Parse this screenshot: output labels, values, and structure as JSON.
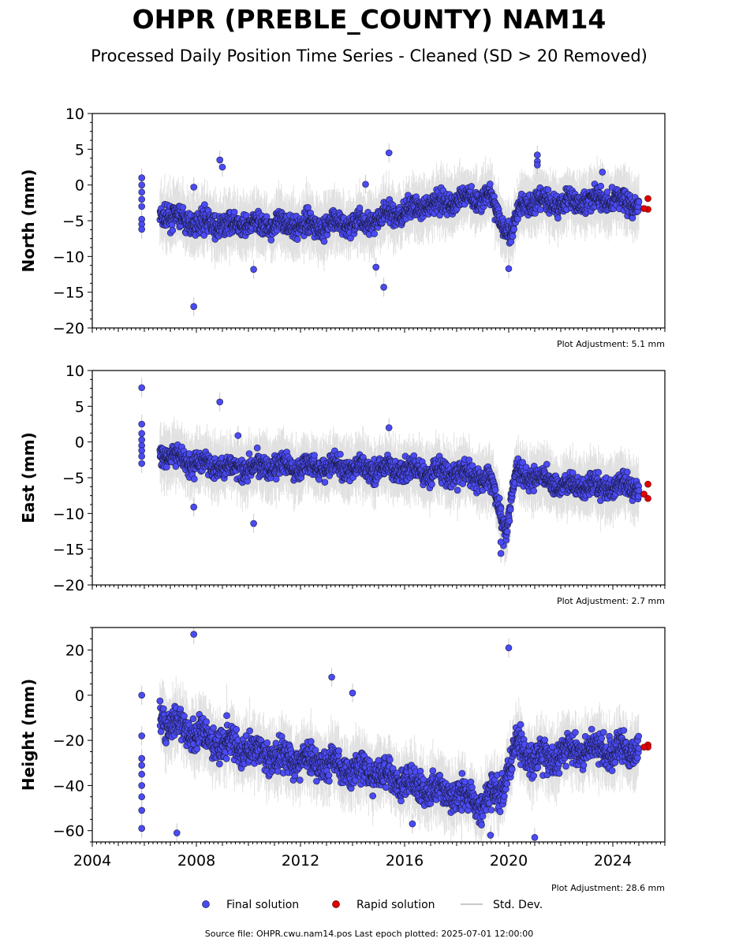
{
  "title": "OHPR (PREBLE_COUNTY) NAM14",
  "subtitle": "Processed Daily Position Time Series - Cleaned (SD > 20 Removed)",
  "footer": "Source file: OHPR.cwu.nam14.pos  Last epoch plotted: 2025-07-01 12:00:00",
  "legend": {
    "final": "Final solution",
    "rapid": "Rapid solution",
    "std": "Std. Dev."
  },
  "colors": {
    "final": "#4b4bf5",
    "rapid": "#e00000",
    "std": "#c8c8c8",
    "point_edge": "#1a1a40"
  },
  "chart_data": [
    {
      "type": "scatter",
      "ylabel": "North (mm)",
      "adjustment": "Plot Adjustment: 5.1 mm",
      "xlim": [
        2004.0,
        2026.0
      ],
      "ylim": [
        -20,
        10
      ],
      "yticks": [
        10,
        5,
        0,
        -5,
        -10,
        -15,
        -20
      ],
      "ytick_labels": [
        "10",
        "5",
        "0",
        "−5",
        "−10",
        "−15",
        "−20"
      ],
      "x_tick_labels_shown": false,
      "series": [
        {
          "name": "Final solution",
          "trend": [
            [
              2006.6,
              -4.0
            ],
            [
              2007.5,
              -5.0
            ],
            [
              2009.0,
              -5.6
            ],
            [
              2011.0,
              -5.5
            ],
            [
              2013.0,
              -5.6
            ],
            [
              2014.5,
              -5.3
            ],
            [
              2015.5,
              -4.2
            ],
            [
              2017.0,
              -2.8
            ],
            [
              2018.5,
              -1.8
            ],
            [
              2019.3,
              -1.8
            ],
            [
              2019.8,
              -5.5
            ],
            [
              2020.1,
              -7.0
            ],
            [
              2020.5,
              -2.5
            ],
            [
              2022.0,
              -2.4
            ],
            [
              2024.0,
              -2.0
            ],
            [
              2025.0,
              -2.7
            ]
          ],
          "spread": 1.5,
          "errbar": 3,
          "outliers": [
            [
              2005.9,
              1.0
            ],
            [
              2005.9,
              0.0
            ],
            [
              2005.9,
              -1.0
            ],
            [
              2005.9,
              -2.0
            ],
            [
              2005.9,
              -3.0
            ],
            [
              2005.9,
              -4.8
            ],
            [
              2005.9,
              -5.5
            ],
            [
              2005.9,
              -6.2
            ],
            [
              2007.9,
              -17.0
            ],
            [
              2007.9,
              -0.3
            ],
            [
              2008.9,
              3.5
            ],
            [
              2009.0,
              2.5
            ],
            [
              2014.5,
              0.1
            ],
            [
              2015.4,
              4.5
            ],
            [
              2014.9,
              -11.5
            ],
            [
              2015.2,
              -14.3
            ],
            [
              2021.1,
              4.2
            ],
            [
              2021.1,
              3.3
            ],
            [
              2021.1,
              2.8
            ],
            [
              2020.0,
              -11.7
            ],
            [
              2010.2,
              -11.8
            ],
            [
              2023.6,
              1.8
            ]
          ]
        },
        {
          "name": "Rapid solution",
          "points": [
            [
              2025.35,
              -1.9
            ],
            [
              2025.35,
              -3.4
            ],
            [
              2025.2,
              -3.3
            ]
          ]
        }
      ]
    },
    {
      "type": "scatter",
      "ylabel": "East (mm)",
      "adjustment": "Plot Adjustment: 2.7 mm",
      "xlim": [
        2004.0,
        2026.0
      ],
      "ylim": [
        -20,
        10
      ],
      "yticks": [
        10,
        5,
        0,
        -5,
        -10,
        -15,
        -20
      ],
      "ytick_labels": [
        "10",
        "5",
        "0",
        "−5",
        "−10",
        "−15",
        "−20"
      ],
      "x_tick_labels_shown": false,
      "series": [
        {
          "name": "Final solution",
          "trend": [
            [
              2006.6,
              -1.5
            ],
            [
              2007.5,
              -2.5
            ],
            [
              2009.0,
              -3.5
            ],
            [
              2011.0,
              -3.4
            ],
            [
              2013.0,
              -3.5
            ],
            [
              2015.0,
              -3.8
            ],
            [
              2017.0,
              -4.2
            ],
            [
              2018.5,
              -4.6
            ],
            [
              2019.3,
              -5.5
            ],
            [
              2019.6,
              -8.5
            ],
            [
              2019.9,
              -12.5
            ],
            [
              2020.1,
              -8.0
            ],
            [
              2020.3,
              -4.0
            ],
            [
              2021.0,
              -5.0
            ],
            [
              2022.0,
              -6.0
            ],
            [
              2024.0,
              -6.3
            ],
            [
              2025.0,
              -6.0
            ]
          ],
          "spread": 1.5,
          "errbar": 3,
          "outliers": [
            [
              2005.9,
              7.6
            ],
            [
              2005.9,
              2.5
            ],
            [
              2005.9,
              1.2
            ],
            [
              2005.9,
              0.3
            ],
            [
              2005.9,
              -0.5
            ],
            [
              2005.9,
              -1.2
            ],
            [
              2005.9,
              -2.0
            ],
            [
              2005.9,
              -3.0
            ],
            [
              2008.9,
              5.6
            ],
            [
              2009.6,
              0.9
            ],
            [
              2015.4,
              2.0
            ],
            [
              2010.2,
              -11.4
            ],
            [
              2007.9,
              -9.1
            ],
            [
              2019.7,
              -15.6
            ],
            [
              2019.8,
              -14.5
            ],
            [
              2019.7,
              -14.0
            ]
          ]
        },
        {
          "name": "Rapid solution",
          "points": [
            [
              2025.35,
              -5.9
            ],
            [
              2025.35,
              -7.9
            ],
            [
              2025.2,
              -7.3
            ]
          ]
        }
      ]
    },
    {
      "type": "scatter",
      "ylabel": "Height (mm)",
      "adjustment": "Plot Adjustment: 28.6 mm",
      "xlim": [
        2004.0,
        2026.0
      ],
      "ylim": [
        -65,
        30
      ],
      "yticks": [
        20,
        0,
        -20,
        -40,
        -60
      ],
      "ytick_labels": [
        "20",
        "0",
        "−20",
        "−40",
        "−60"
      ],
      "x_tick_labels_shown": true,
      "xticks": [
        2004,
        2008,
        2012,
        2016,
        2020,
        2024
      ],
      "xtick_labels": [
        "2004",
        "2008",
        "2012",
        "2016",
        "2020",
        "2024"
      ],
      "series": [
        {
          "name": "Final solution",
          "trend": [
            [
              2006.6,
              -10
            ],
            [
              2007.3,
              -14
            ],
            [
              2008.0,
              -17
            ],
            [
              2009.0,
              -20
            ],
            [
              2010.0,
              -24
            ],
            [
              2011.0,
              -28
            ],
            [
              2012.0,
              -28
            ],
            [
              2013.0,
              -30
            ],
            [
              2014.0,
              -33
            ],
            [
              2015.0,
              -35
            ],
            [
              2016.0,
              -38
            ],
            [
              2017.0,
              -42
            ],
            [
              2018.0,
              -44
            ],
            [
              2019.0,
              -48
            ],
            [
              2019.8,
              -40
            ],
            [
              2020.3,
              -22
            ],
            [
              2021.0,
              -28
            ],
            [
              2022.0,
              -26
            ],
            [
              2023.0,
              -24
            ],
            [
              2024.0,
              -25
            ],
            [
              2025.0,
              -23
            ]
          ],
          "spread": 7,
          "errbar": 10,
          "outliers": [
            [
              2005.9,
              0
            ],
            [
              2005.9,
              -18
            ],
            [
              2005.9,
              -28
            ],
            [
              2005.9,
              -31
            ],
            [
              2005.9,
              -35
            ],
            [
              2005.9,
              -40
            ],
            [
              2005.9,
              -45
            ],
            [
              2005.9,
              -51
            ],
            [
              2005.9,
              -59
            ],
            [
              2007.9,
              27
            ],
            [
              2007.25,
              -61
            ],
            [
              2013.2,
              8
            ],
            [
              2014.0,
              1
            ],
            [
              2020.0,
              21
            ],
            [
              2021.0,
              -63
            ],
            [
              2016.3,
              -57
            ],
            [
              2019.3,
              -62
            ]
          ]
        },
        {
          "name": "Rapid solution",
          "points": [
            [
              2025.35,
              -22
            ],
            [
              2025.35,
              -23
            ],
            [
              2025.2,
              -23
            ]
          ]
        }
      ]
    }
  ]
}
